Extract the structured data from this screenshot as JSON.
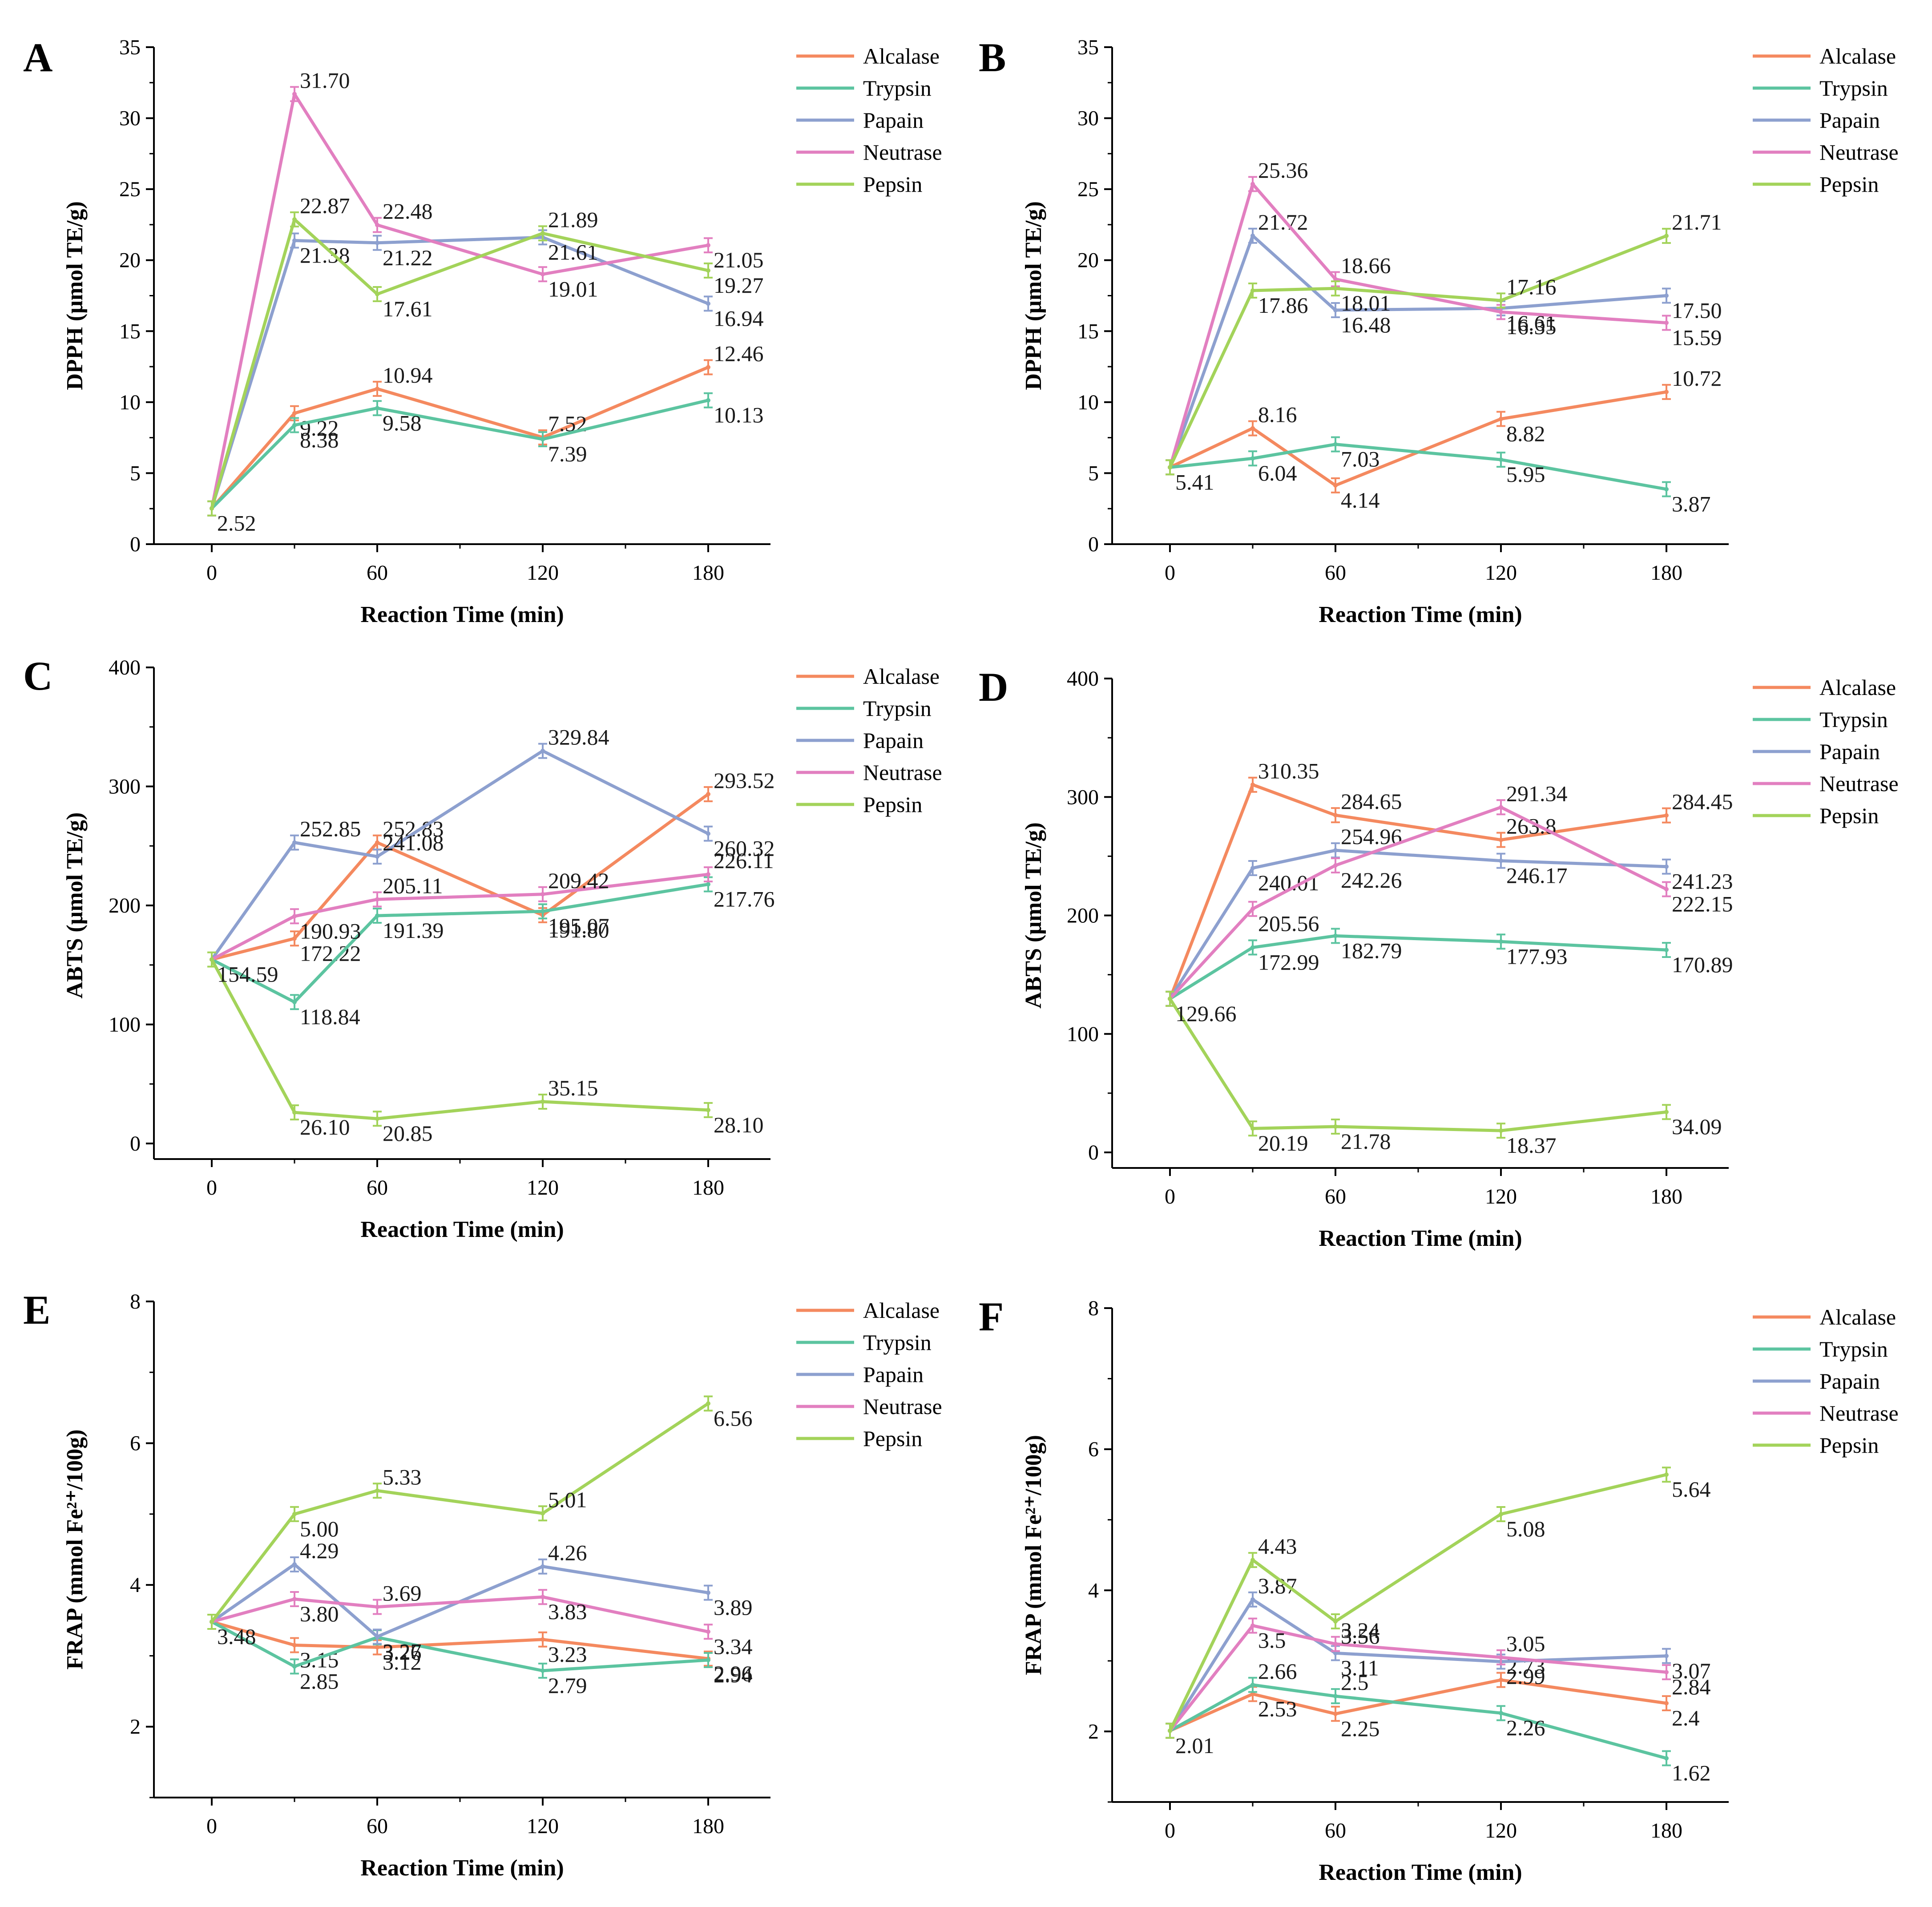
{
  "figure": {
    "legend": [
      "Alcalase",
      "Trypsin",
      "Papain",
      "Neutrase",
      "Pepsin"
    ],
    "colors": {
      "Alcalase": "#f4895f",
      "Trypsin": "#5cc4a0",
      "Papain": "#8da0cf",
      "Neutrase": "#e27fc0",
      "Pepsin": "#a3d35a"
    }
  },
  "chart_data": [
    {
      "panel": "A",
      "type": "line",
      "xlabel": "Reaction Time (min)",
      "ylabel": "DPPH (μmol TE/g)",
      "x": [
        0,
        30,
        60,
        120,
        180
      ],
      "xticks": [
        "0",
        "60",
        "120",
        "180"
      ],
      "ylim": [
        0,
        35
      ],
      "yticks": [
        "0",
        "5",
        "10",
        "15",
        "20",
        "25",
        "30",
        "35"
      ],
      "series": [
        {
          "name": "Alcalase",
          "values": [
            2.52,
            9.22,
            10.94,
            7.52,
            12.46
          ],
          "labels": [
            "",
            "9.22",
            "10.94",
            "7.52",
            "12.46"
          ]
        },
        {
          "name": "Trypsin",
          "values": [
            2.52,
            8.38,
            9.58,
            7.39,
            10.13
          ],
          "labels": [
            "",
            "8.38",
            "9.58",
            "7.39",
            "10.13"
          ]
        },
        {
          "name": "Papain",
          "values": [
            2.52,
            21.38,
            21.22,
            21.61,
            16.94
          ],
          "labels": [
            "",
            "21.38",
            "21.22",
            "21.61",
            "16.94"
          ]
        },
        {
          "name": "Neutrase",
          "values": [
            2.52,
            31.7,
            22.48,
            19.01,
            21.05
          ],
          "labels": [
            "",
            "31.70",
            "22.48",
            "19.01",
            "21.05"
          ]
        },
        {
          "name": "Pepsin",
          "values": [
            2.52,
            22.87,
            17.61,
            21.89,
            19.27
          ],
          "labels": [
            "2.52",
            "22.87",
            "17.61",
            "21.89",
            "19.27"
          ]
        }
      ]
    },
    {
      "panel": "B",
      "type": "line",
      "xlabel": "Reaction Time (min)",
      "ylabel": "DPPH (μmol TE/g)",
      "x": [
        0,
        30,
        60,
        120,
        180
      ],
      "xticks": [
        "0",
        "60",
        "120",
        "180"
      ],
      "ylim": [
        0,
        35
      ],
      "yticks": [
        "0",
        "5",
        "10",
        "15",
        "20",
        "25",
        "30",
        "35"
      ],
      "series": [
        {
          "name": "Alcalase",
          "values": [
            5.41,
            8.16,
            4.14,
            8.82,
            10.72
          ],
          "labels": [
            "",
            "8.16",
            "4.14",
            "8.82",
            "10.72"
          ]
        },
        {
          "name": "Trypsin",
          "values": [
            5.41,
            6.04,
            7.03,
            5.95,
            3.87
          ],
          "labels": [
            "",
            "6.04",
            "7.03",
            "5.95",
            "3.87"
          ]
        },
        {
          "name": "Papain",
          "values": [
            5.41,
            21.72,
            16.48,
            16.61,
            17.5
          ],
          "labels": [
            "",
            "21.72",
            "16.48",
            "16.61",
            "17.50"
          ]
        },
        {
          "name": "Neutrase",
          "values": [
            5.41,
            25.36,
            18.66,
            16.35,
            15.59
          ],
          "labels": [
            "",
            "25.36",
            "18.66",
            "16.35",
            "15.59"
          ]
        },
        {
          "name": "Pepsin",
          "values": [
            5.41,
            17.86,
            18.01,
            17.16,
            21.71
          ],
          "labels": [
            "5.41",
            "17.86",
            "18.01",
            "17.16",
            "21.71"
          ]
        }
      ]
    },
    {
      "panel": "C",
      "type": "line",
      "xlabel": "Reaction Time (min)",
      "ylabel": "ABTS (μmol TE/g)",
      "x": [
        0,
        30,
        60,
        120,
        180
      ],
      "xticks": [
        "0",
        "60",
        "120",
        "180"
      ],
      "ylim": [
        0,
        400
      ],
      "yticks": [
        "0",
        "100",
        "200",
        "300",
        "400"
      ],
      "series": [
        {
          "name": "Alcalase",
          "values": [
            154.59,
            172.22,
            252.83,
            191.8,
            293.52
          ],
          "labels": [
            "",
            "172.22",
            "252.83",
            "191.80",
            "293.52"
          ]
        },
        {
          "name": "Trypsin",
          "values": [
            154.59,
            118.84,
            191.39,
            195.07,
            217.76
          ],
          "labels": [
            "",
            "118.84",
            "191.39",
            "195.07",
            "217.76"
          ]
        },
        {
          "name": "Papain",
          "values": [
            154.59,
            252.85,
            241.08,
            329.84,
            260.32
          ],
          "labels": [
            "",
            "252.85",
            "241.08",
            "329.84",
            "260.32"
          ]
        },
        {
          "name": "Neutrase",
          "values": [
            154.59,
            190.93,
            205.11,
            209.42,
            226.11
          ],
          "labels": [
            "",
            "190.93",
            "205.11",
            "209.42",
            "226.11"
          ]
        },
        {
          "name": "Pepsin",
          "values": [
            154.59,
            26.1,
            20.85,
            35.15,
            28.1
          ],
          "labels": [
            "154.59",
            "26.10",
            "20.85",
            "35.15",
            "28.10"
          ]
        }
      ]
    },
    {
      "panel": "D",
      "type": "line",
      "xlabel": "Reaction Time (min)",
      "ylabel": "ABTS (μmol TE/g)",
      "x": [
        0,
        30,
        60,
        120,
        180
      ],
      "xticks": [
        "0",
        "60",
        "120",
        "180"
      ],
      "ylim": [
        0,
        400
      ],
      "yticks": [
        "0",
        "100",
        "200",
        "300",
        "400"
      ],
      "series": [
        {
          "name": "Alcalase",
          "values": [
            129.66,
            310.35,
            284.65,
            263.8,
            284.45
          ],
          "labels": [
            "",
            "310.35",
            "284.65",
            "263.8",
            "284.45"
          ]
        },
        {
          "name": "Trypsin",
          "values": [
            129.66,
            172.99,
            182.79,
            177.93,
            170.89
          ],
          "labels": [
            "",
            "172.99",
            "182.79",
            "177.93",
            "170.89"
          ]
        },
        {
          "name": "Papain",
          "values": [
            129.66,
            240.01,
            254.96,
            246.17,
            241.23
          ],
          "labels": [
            "",
            "240.01",
            "254.96",
            "246.17",
            "241.23"
          ]
        },
        {
          "name": "Neutrase",
          "values": [
            129.66,
            205.56,
            242.26,
            291.34,
            222.15
          ],
          "labels": [
            "",
            "205.56",
            "242.26",
            "291.34",
            "222.15"
          ]
        },
        {
          "name": "Pepsin",
          "values": [
            129.66,
            20.19,
            21.78,
            18.37,
            34.09
          ],
          "labels": [
            "129.66",
            "20.19",
            "21.78",
            "18.37",
            "34.09"
          ]
        }
      ]
    },
    {
      "panel": "E",
      "type": "line",
      "xlabel": "Reaction Time (min)",
      "ylabel": "FRAP (mmol Fe²⁺/100g)",
      "x": [
        0,
        30,
        60,
        120,
        180
      ],
      "xticks": [
        "0",
        "60",
        "120",
        "180"
      ],
      "ylim": [
        1,
        8
      ],
      "yticks": [
        "2",
        "4",
        "6",
        "8"
      ],
      "series": [
        {
          "name": "Alcalase",
          "values": [
            3.48,
            3.15,
            3.12,
            3.23,
            2.96
          ],
          "labels": [
            "",
            "3.15",
            "3.12",
            "3.23",
            "2.96"
          ]
        },
        {
          "name": "Trypsin",
          "values": [
            3.48,
            2.85,
            3.26,
            2.79,
            2.94
          ],
          "labels": [
            "",
            "2.85",
            "3.26",
            "2.79",
            "2.94"
          ]
        },
        {
          "name": "Papain",
          "values": [
            3.48,
            4.29,
            3.27,
            4.26,
            3.89
          ],
          "labels": [
            "",
            "4.29",
            "3.27",
            "4.26",
            "3.89"
          ]
        },
        {
          "name": "Neutrase",
          "values": [
            3.48,
            3.8,
            3.69,
            3.83,
            3.34
          ],
          "labels": [
            "",
            "3.80",
            "3.69",
            "3.83",
            "3.34"
          ]
        },
        {
          "name": "Pepsin",
          "values": [
            3.48,
            5.0,
            5.33,
            5.01,
            6.56
          ],
          "labels": [
            "3.48",
            "5.00",
            "5.33",
            "5.01",
            "6.56"
          ]
        }
      ]
    },
    {
      "panel": "F",
      "type": "line",
      "xlabel": "Reaction Time (min)",
      "ylabel": "FRAP (mmol Fe²⁺/100g)",
      "x": [
        0,
        30,
        60,
        120,
        180
      ],
      "xticks": [
        "0",
        "60",
        "120",
        "180"
      ],
      "ylim": [
        1,
        8
      ],
      "yticks": [
        "2",
        "4",
        "6",
        "8"
      ],
      "series": [
        {
          "name": "Alcalase",
          "values": [
            2.01,
            2.53,
            2.25,
            2.73,
            2.4
          ],
          "labels": [
            "",
            "2.53",
            "2.25",
            "2.73",
            "2.4"
          ]
        },
        {
          "name": "Trypsin",
          "values": [
            2.01,
            2.66,
            2.5,
            2.26,
            1.62
          ],
          "labels": [
            "",
            "2.66",
            "2.5",
            "2.26",
            "1.62"
          ]
        },
        {
          "name": "Papain",
          "values": [
            2.01,
            3.87,
            3.11,
            2.99,
            3.07
          ],
          "labels": [
            "",
            "3.87",
            "3.11",
            "2.99",
            "3.07"
          ]
        },
        {
          "name": "Neutrase",
          "values": [
            2.01,
            3.5,
            3.24,
            3.05,
            2.84
          ],
          "labels": [
            "",
            "3.5",
            "3.24",
            "3.05",
            "2.84"
          ]
        },
        {
          "name": "Pepsin",
          "values": [
            2.01,
            4.43,
            3.56,
            5.08,
            5.64
          ],
          "labels": [
            "2.01",
            "4.43",
            "3.56",
            "5.08",
            "5.64"
          ]
        }
      ]
    }
  ]
}
